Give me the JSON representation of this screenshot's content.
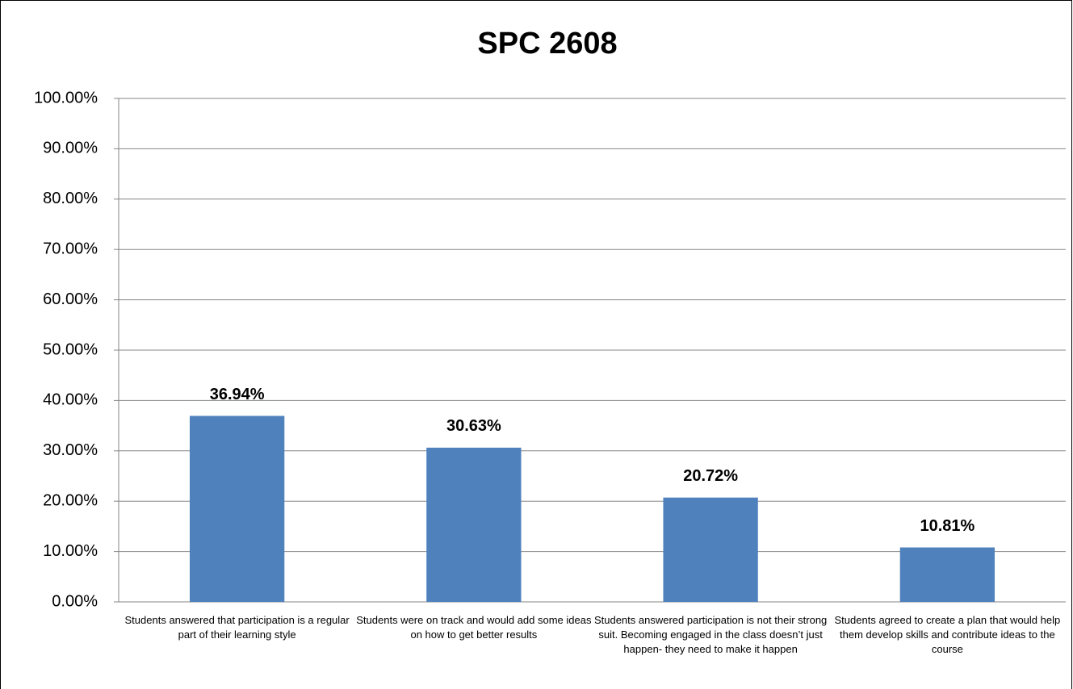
{
  "chart_data": {
    "type": "bar",
    "title": "SPC 2608",
    "categories": [
      "Students answered that participation is a regular part of their learning style",
      "Students were on track and would add some ideas on how to get better results",
      "Students answered participation is not their strong suit.  Becoming engaged in the class doesn’t just happen- they need to make it happen",
      "Students agreed to create a plan that would help them develop skills and contribute ideas to the course"
    ],
    "values": [
      36.94,
      30.63,
      20.72,
      10.81
    ],
    "value_labels": [
      "36.94%",
      "30.63%",
      "20.72%",
      "10.81%"
    ],
    "color": "#4f81bd",
    "ylim": [
      0,
      100
    ],
    "yticks": [
      {
        "value": 0,
        "label": "0.00%"
      },
      {
        "value": 10,
        "label": "10.00%"
      },
      {
        "value": 20,
        "label": "20.00%"
      },
      {
        "value": 30,
        "label": "30.00%"
      },
      {
        "value": 40,
        "label": "40.00%"
      },
      {
        "value": 50,
        "label": "50.00%"
      },
      {
        "value": 60,
        "label": "60.00%"
      },
      {
        "value": 70,
        "label": "70.00%"
      },
      {
        "value": 80,
        "label": "80.00%"
      },
      {
        "value": 90,
        "label": "90.00%"
      },
      {
        "value": 100,
        "label": "100.00%"
      }
    ],
    "grid": true
  }
}
